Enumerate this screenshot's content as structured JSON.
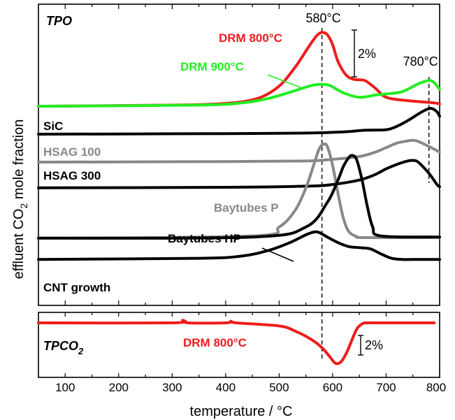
{
  "chart_data": {
    "type": "line",
    "xlabel": "temperature / °C",
    "ylabel": "effluent CO2 mole fraction",
    "xlim": [
      50,
      800
    ],
    "x_ticks": [
      100,
      200,
      300,
      400,
      500,
      600,
      700,
      800
    ],
    "x_tick_labels": [
      "100",
      "200",
      "300",
      "400",
      "500",
      "600",
      "700",
      "800"
    ],
    "colors": {
      "red": "#ee1c1c",
      "green": "#22ee22",
      "gray": "#888888",
      "black": "#000000"
    },
    "reference_lines": [
      {
        "x": 580,
        "label": "580°C"
      },
      {
        "x": 780,
        "label": "780°C"
      }
    ],
    "panels": [
      {
        "id": "top",
        "title": "TPO",
        "scale_bar": "2%",
        "series": [
          {
            "name": "DRM 800°C",
            "color": "red",
            "baseline": 0,
            "x": [
              50,
              300,
              400,
              460,
              500,
              530,
              555,
              570,
              580,
              590,
              600,
              610,
              625,
              640,
              660,
              680,
              700,
              740,
              790,
              800
            ],
            "y": [
              0,
              0.1,
              0.25,
              0.7,
              1.8,
              3.5,
              5.3,
              6.3,
              6.6,
              6.4,
              5.5,
              4.0,
              2.8,
              2.4,
              2.3,
              1.6,
              0.8,
              0.5,
              0.3,
              0.2
            ]
          },
          {
            "name": "DRM 900°C",
            "color": "green",
            "baseline": 0,
            "x": [
              50,
              350,
              430,
              480,
              530,
              560,
              580,
              595,
              620,
              650,
              680,
              700,
              730,
              760,
              780,
              790,
              800
            ],
            "y": [
              0,
              0.1,
              0.3,
              0.7,
              1.4,
              1.85,
              1.95,
              1.85,
              1.2,
              0.8,
              1.0,
              1.1,
              1.3,
              2.0,
              2.3,
              2.1,
              1.5
            ]
          },
          {
            "name": "SiC",
            "color": "black",
            "baseline": -2.5,
            "x": [
              50,
              400,
              550,
              620,
              660,
              700,
              720,
              740,
              760,
              775,
              785,
              795,
              800
            ],
            "y": [
              0,
              0.05,
              0.1,
              0.2,
              0.35,
              0.4,
              0.7,
              1.2,
              1.8,
              2.2,
              2.3,
              2.0,
              1.6
            ]
          },
          {
            "name": "HSAG 100",
            "color": "gray",
            "baseline": -5.0,
            "x": [
              50,
              400,
              550,
              600,
              650,
              680,
              700,
              720,
              740,
              750,
              760,
              780,
              800
            ],
            "y": [
              0,
              0.05,
              0.1,
              0.25,
              0.5,
              0.9,
              1.3,
              1.7,
              1.9,
              1.95,
              1.85,
              1.4,
              0.9
            ]
          },
          {
            "name": "HSAG 300",
            "color": "black",
            "baseline": -7.3,
            "x": [
              50,
              400,
              550,
              600,
              650,
              680,
              700,
              720,
              740,
              750,
              760,
              780,
              795,
              800
            ],
            "y": [
              0,
              0.05,
              0.15,
              0.3,
              0.7,
              1.2,
              1.7,
              2.1,
              2.4,
              2.45,
              2.3,
              1.3,
              0.3,
              0.1
            ]
          },
          {
            "name": "Baytubes P",
            "color": "gray",
            "baseline": -11.8,
            "x": [
              50,
              450,
              500,
              530,
              550,
              565,
              575,
              583,
              590,
              600,
              610,
              620,
              630,
              645,
              660,
              800
            ],
            "y": [
              0,
              0.2,
              1.0,
              2.5,
              4.5,
              6.6,
              8.0,
              8.4,
              8.2,
              6.5,
              4.0,
              1.8,
              0.6,
              0.15,
              0.05,
              0.05
            ]
          },
          {
            "name": "Baytubes HP",
            "color": "black",
            "baseline": -11.8,
            "x": [
              50,
              450,
              550,
              590,
              610,
              620,
              630,
              637,
              645,
              655,
              665,
              675,
              690,
              800
            ],
            "y": [
              0,
              0.1,
              1.0,
              3.2,
              5.2,
              6.4,
              7.2,
              7.4,
              7.0,
              5.2,
              2.8,
              1.0,
              0.2,
              0.1
            ]
          },
          {
            "name": "CNT growth",
            "color": "black",
            "baseline": -13.7,
            "x": [
              50,
              350,
              430,
              480,
              520,
              550,
              565,
              575,
              590,
              610,
              630,
              650,
              670,
              690,
              710,
              730,
              760,
              800
            ],
            "y": [
              0,
              0.1,
              0.3,
              0.8,
              1.5,
              2.2,
              2.45,
              2.4,
              2.0,
              1.5,
              1.15,
              1.05,
              0.95,
              0.5,
              0.1,
              0,
              0,
              0
            ]
          }
        ]
      },
      {
        "id": "bottom",
        "title": "TPCO",
        "title_sub": "2",
        "scale_bar": "2%",
        "series": [
          {
            "name": "DRM 800°C",
            "color": "red",
            "baseline": 0,
            "x": [
              50,
              300,
              320,
              330,
              400,
              410,
              420,
              500,
              530,
              560,
              580,
              595,
              605,
              615,
              625,
              635,
              645,
              655,
              665,
              700,
              790
            ],
            "y": [
              0,
              0,
              0.25,
              0,
              0,
              0.15,
              0,
              -0.3,
              -0.8,
              -1.6,
              -2.4,
              -3.3,
              -3.9,
              -3.8,
              -3.0,
              -1.8,
              -0.6,
              -0.1,
              0,
              0,
              0
            ]
          }
        ]
      }
    ]
  }
}
